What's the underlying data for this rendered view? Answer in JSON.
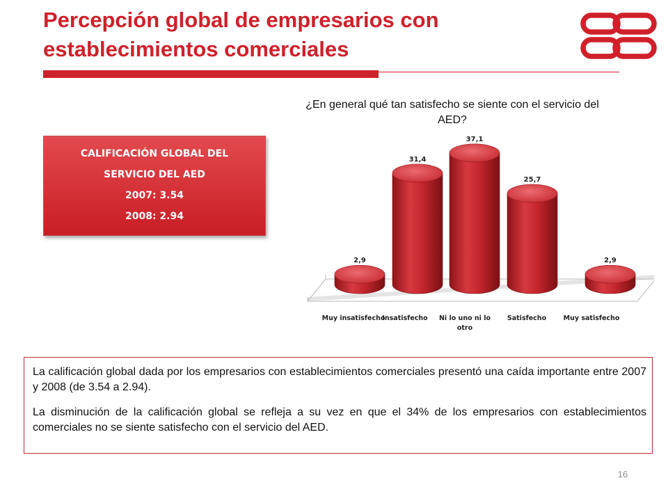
{
  "slide": {
    "title": "Percepción global de empresarios con establecimientos comerciales",
    "page_number": "16"
  },
  "score_box": {
    "heading_line1": "CALIFICACIÓN GLOBAL DEL",
    "heading_line2": "SERVICIO DEL AED",
    "year_2007": "2007: 3.54",
    "year_2008": "2008: 2.94"
  },
  "notes": {
    "paragraph1": "La calificación global dada por los empresarios con establecimientos comerciales presentó una caída importante entre  2007 y 2008 (de 3.54 a 2.94).",
    "paragraph2": "La disminución de la calificación global se refleja a su vez en que el 34% de los empresarios con establecimientos comerciales no se siente satisfecho con el servicio del AED."
  },
  "colors": {
    "brand_red": "#d0202a",
    "bar_red": "#c8272e"
  },
  "chart_data": {
    "type": "bar",
    "title": "¿En general qué tan satisfecho se siente con el servicio del AED?",
    "categories": [
      "Muy insatisfecho",
      "Insatisfecho",
      "Ni lo uno ni lo otro",
      "Satisfecho",
      "Muy satisfecho"
    ],
    "values": [
      2.9,
      31.4,
      37.1,
      25.7,
      2.9
    ],
    "value_labels": [
      "2,9",
      "31,4",
      "37,1",
      "25,7",
      "2,9"
    ],
    "ylim": [
      0,
      40
    ],
    "grid": false,
    "legend": "none",
    "style": "3d-cylinder"
  }
}
